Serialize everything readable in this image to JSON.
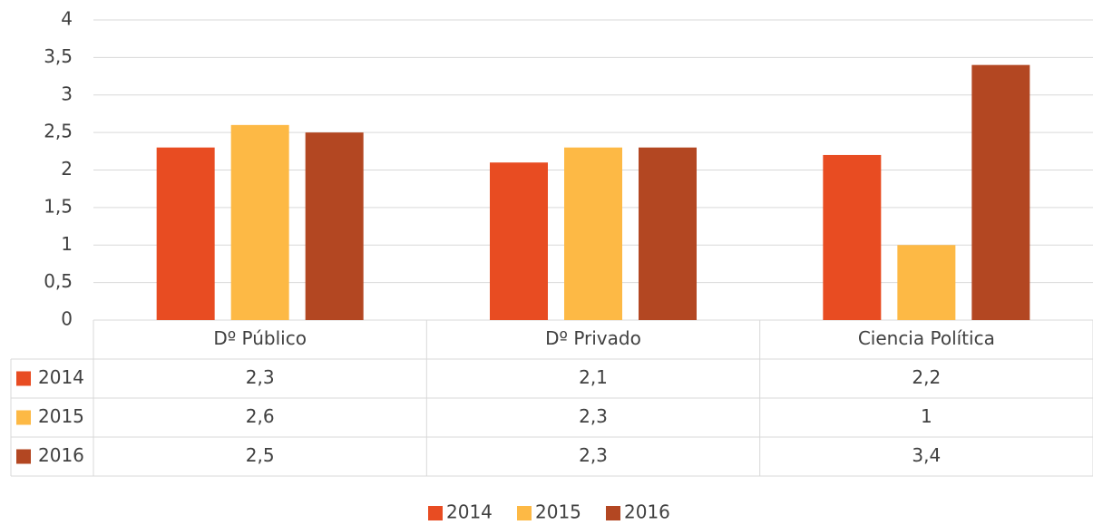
{
  "chart_data": {
    "type": "bar",
    "categories": [
      "Dº Público",
      "Dº Privado",
      "Ciencia Política"
    ],
    "series": [
      {
        "name": "2014",
        "color": "#e84c22",
        "values": [
          2.3,
          2.1,
          2.2
        ],
        "value_labels": [
          "2,3",
          "2,1",
          "2,2"
        ]
      },
      {
        "name": "2015",
        "color": "#fdb945",
        "values": [
          2.6,
          2.3,
          1
        ],
        "value_labels": [
          "2,6",
          "2,3",
          "1"
        ]
      },
      {
        "name": "2016",
        "color": "#b34722",
        "values": [
          2.5,
          2.3,
          3.4
        ],
        "value_labels": [
          "2,5",
          "2,3",
          "3,4"
        ]
      }
    ],
    "ylim": [
      0,
      4
    ],
    "yticks": [
      0,
      {
        "value": 0.5,
        "label": "0,5"
      },
      1,
      {
        "value": 1.5,
        "label": "1,5"
      },
      2,
      {
        "value": 2.5,
        "label": "2,5"
      },
      3,
      {
        "value": 3.5,
        "label": "3,5"
      },
      4
    ],
    "grid": true,
    "legend": "bottom",
    "data_table": true
  }
}
